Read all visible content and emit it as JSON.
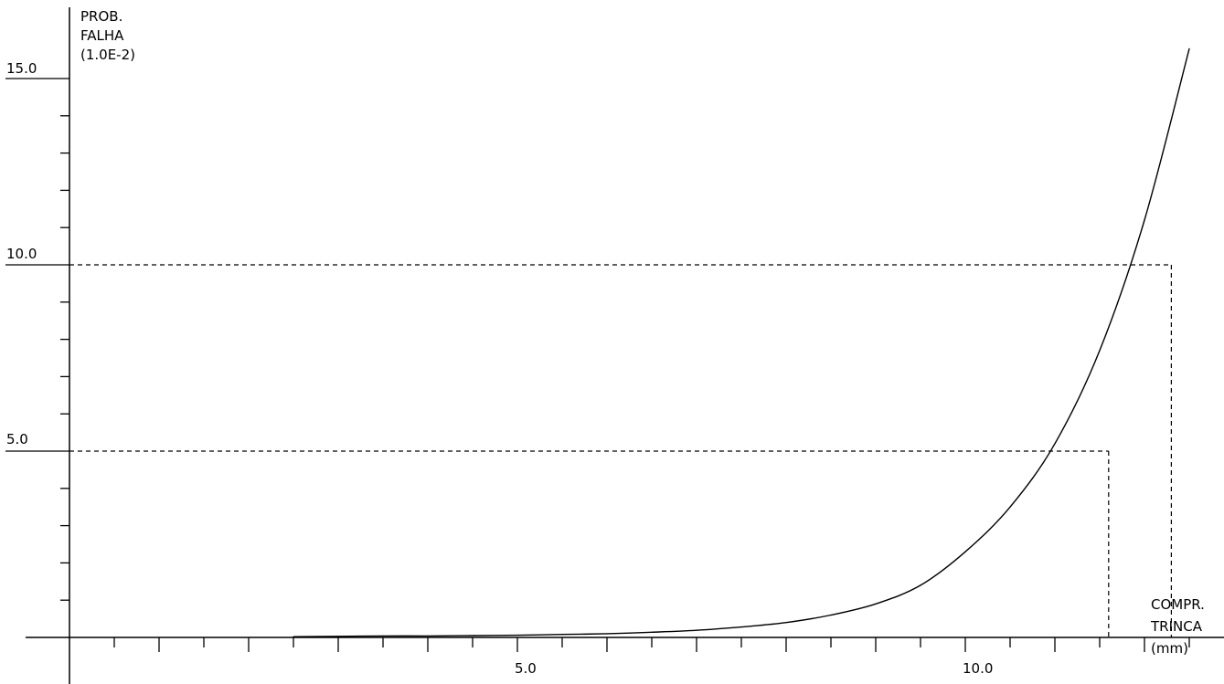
{
  "chart_data": {
    "type": "line",
    "y_title": [
      "PROB.",
      "FALHA",
      "(1.0E-2)"
    ],
    "x_title": [
      "COMPR.",
      "TRINCA",
      "(mm)"
    ],
    "xlim": [
      0,
      12.5
    ],
    "ylim": [
      0,
      15
    ],
    "x_tick_labels": [
      "5.0",
      "10.0"
    ],
    "y_tick_labels": [
      "5.0",
      "10.0",
      "15.0"
    ],
    "grid": false,
    "series": [
      {
        "x": [
          2.5,
          3,
          3.5,
          4,
          4.5,
          5,
          5.5,
          6,
          6.5,
          7,
          7.5,
          8,
          8.5,
          9,
          9.5,
          10,
          10.5,
          11,
          11.5,
          12,
          12.5
        ],
        "y": [
          0.02,
          0.03,
          0.04,
          0.04,
          0.05,
          0.06,
          0.08,
          0.1,
          0.14,
          0.19,
          0.28,
          0.4,
          0.6,
          0.9,
          1.4,
          2.3,
          3.5,
          5.2,
          7.7,
          11.2,
          15.8
        ]
      }
    ],
    "reference_lines": [
      {
        "x": 11.6,
        "y": 5.0
      },
      {
        "x": 12.3,
        "y": 10.0
      }
    ]
  }
}
